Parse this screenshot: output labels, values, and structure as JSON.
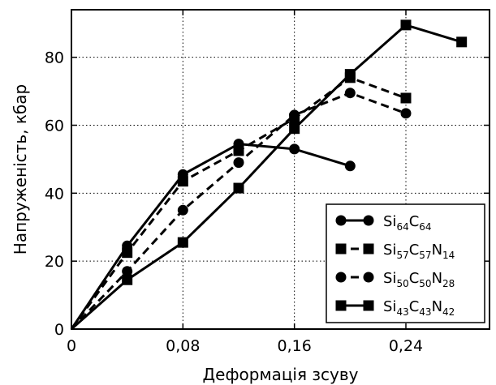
{
  "chart_data": {
    "type": "line",
    "xlabel": "Деформація зсуву",
    "ylabel": "Напруженість, кбар",
    "xlim": [
      0,
      0.3
    ],
    "ylim": [
      0,
      94
    ],
    "xticks": [
      0,
      0.08,
      0.16,
      0.24
    ],
    "xtick_labels": [
      "0",
      "0,08",
      "0,16",
      "0,24"
    ],
    "yticks": [
      0,
      20,
      40,
      60,
      80
    ],
    "ytick_labels": [
      "0",
      "20",
      "40",
      "60",
      "80"
    ],
    "grid": true,
    "legend_position": "bottom-right",
    "series": [
      {
        "name": "Si64C64",
        "name_parts": [
          {
            "t": "Si",
            "s": false
          },
          {
            "t": "64",
            "s": true
          },
          {
            "t": "C",
            "s": false
          },
          {
            "t": "64",
            "s": true
          }
        ],
        "line_style": "solid",
        "marker": "circle",
        "x": [
          0,
          0.04,
          0.08,
          0.12,
          0.16,
          0.2
        ],
        "y": [
          0,
          24.5,
          45.5,
          54.5,
          53,
          48
        ]
      },
      {
        "name": "Si57C57N14",
        "name_parts": [
          {
            "t": "Si",
            "s": false
          },
          {
            "t": "57",
            "s": true
          },
          {
            "t": "C",
            "s": false
          },
          {
            "t": "57",
            "s": true
          },
          {
            "t": "N",
            "s": false
          },
          {
            "t": "14",
            "s": true
          }
        ],
        "line_style": "dashed",
        "marker": "square",
        "x": [
          0,
          0.04,
          0.08,
          0.12,
          0.16,
          0.2,
          0.24
        ],
        "y": [
          0,
          22.5,
          43.5,
          52.5,
          62,
          74,
          68
        ]
      },
      {
        "name": "Si50C50N28",
        "name_parts": [
          {
            "t": "Si",
            "s": false
          },
          {
            "t": "50",
            "s": true
          },
          {
            "t": "C",
            "s": false
          },
          {
            "t": "50",
            "s": true
          },
          {
            "t": "N",
            "s": false
          },
          {
            "t": "28",
            "s": true
          }
        ],
        "line_style": "dashed",
        "marker": "circle",
        "x": [
          0,
          0.04,
          0.08,
          0.12,
          0.16,
          0.2,
          0.24
        ],
        "y": [
          0,
          17,
          35,
          49,
          63,
          69.5,
          63.5
        ]
      },
      {
        "name": "Si43C43N42",
        "name_parts": [
          {
            "t": "Si",
            "s": false
          },
          {
            "t": "43",
            "s": true
          },
          {
            "t": "C",
            "s": false
          },
          {
            "t": "43",
            "s": true
          },
          {
            "t": "N",
            "s": false
          },
          {
            "t": "42",
            "s": true
          }
        ],
        "line_style": "solid",
        "marker": "square",
        "x": [
          0,
          0.04,
          0.08,
          0.12,
          0.16,
          0.2,
          0.24,
          0.28
        ],
        "y": [
          0,
          14.5,
          25.5,
          41.5,
          59,
          75,
          89.5,
          84.5
        ]
      }
    ]
  }
}
